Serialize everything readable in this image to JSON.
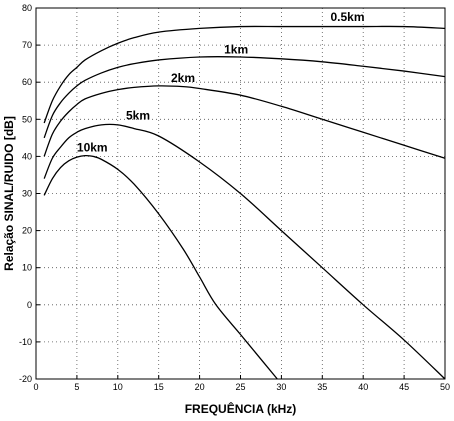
{
  "chart_data": {
    "type": "line",
    "xlabel": "FREQUÊNCIA (kHz)",
    "ylabel": "Relação SINAL/RUIDO [dB]",
    "xlim": [
      0,
      50
    ],
    "ylim": [
      -20,
      80
    ],
    "xticks": [
      0,
      5,
      10,
      15,
      20,
      25,
      30,
      35,
      40,
      45,
      50
    ],
    "yticks": [
      -20,
      -10,
      0,
      10,
      20,
      30,
      40,
      50,
      60,
      70,
      80
    ],
    "grid": true,
    "series": [
      {
        "name": "0.5km",
        "x": [
          1,
          2,
          3,
          4,
          5,
          6,
          8,
          10,
          12,
          15,
          20,
          25,
          30,
          35,
          40,
          45,
          50
        ],
        "y": [
          49,
          55,
          59,
          62,
          64,
          66,
          68.5,
          70.5,
          72,
          73.5,
          74.5,
          75,
          75,
          75,
          75,
          75,
          74.5
        ]
      },
      {
        "name": "1km",
        "x": [
          1,
          2,
          3,
          4,
          5,
          6,
          8,
          10,
          12,
          15,
          20,
          25,
          30,
          35,
          40,
          45,
          50
        ],
        "y": [
          45,
          51,
          54.5,
          57,
          59,
          60.5,
          62.5,
          64,
          65,
          66,
          66.8,
          66.8,
          66.3,
          65.5,
          64.3,
          63,
          61.5
        ]
      },
      {
        "name": "2km",
        "x": [
          1,
          2,
          3,
          4,
          5,
          6,
          8,
          10,
          12,
          15,
          18,
          20,
          25,
          30,
          35,
          40,
          45,
          50
        ],
        "y": [
          40,
          46,
          49.5,
          52,
          54,
          55.5,
          57,
          58,
          58.6,
          59,
          58.8,
          58.3,
          56.5,
          53.5,
          50,
          46.5,
          43,
          39.5
        ]
      },
      {
        "name": "5km",
        "x": [
          1,
          2,
          3,
          4,
          5,
          6,
          8,
          10,
          12,
          15,
          20,
          25,
          30,
          35,
          40,
          45,
          50
        ],
        "y": [
          34,
          39.5,
          42.5,
          45,
          46.5,
          47.5,
          48.5,
          48.5,
          47.5,
          45.5,
          38.5,
          30,
          20,
          10,
          0,
          -9.5,
          -20
        ]
      },
      {
        "name": "10km",
        "x": [
          1,
          2,
          3,
          4,
          5,
          6,
          7,
          8,
          10,
          12,
          15,
          18,
          20,
          22,
          25,
          28,
          29.5
        ],
        "y": [
          29.5,
          34,
          37,
          38.8,
          39.8,
          40.2,
          40,
          39.2,
          36.5,
          32.5,
          24.5,
          15,
          7.5,
          0,
          -8,
          -16,
          -20
        ]
      }
    ],
    "series_label_positions": {
      "0.5km": {
        "x": 36,
        "y": 76.5
      },
      "1km": {
        "x": 23,
        "y": 67.7
      },
      "2km": {
        "x": 16.5,
        "y": 60
      },
      "5km": {
        "x": 11,
        "y": 50
      },
      "10km": {
        "x": 5,
        "y": 41.3
      }
    }
  }
}
